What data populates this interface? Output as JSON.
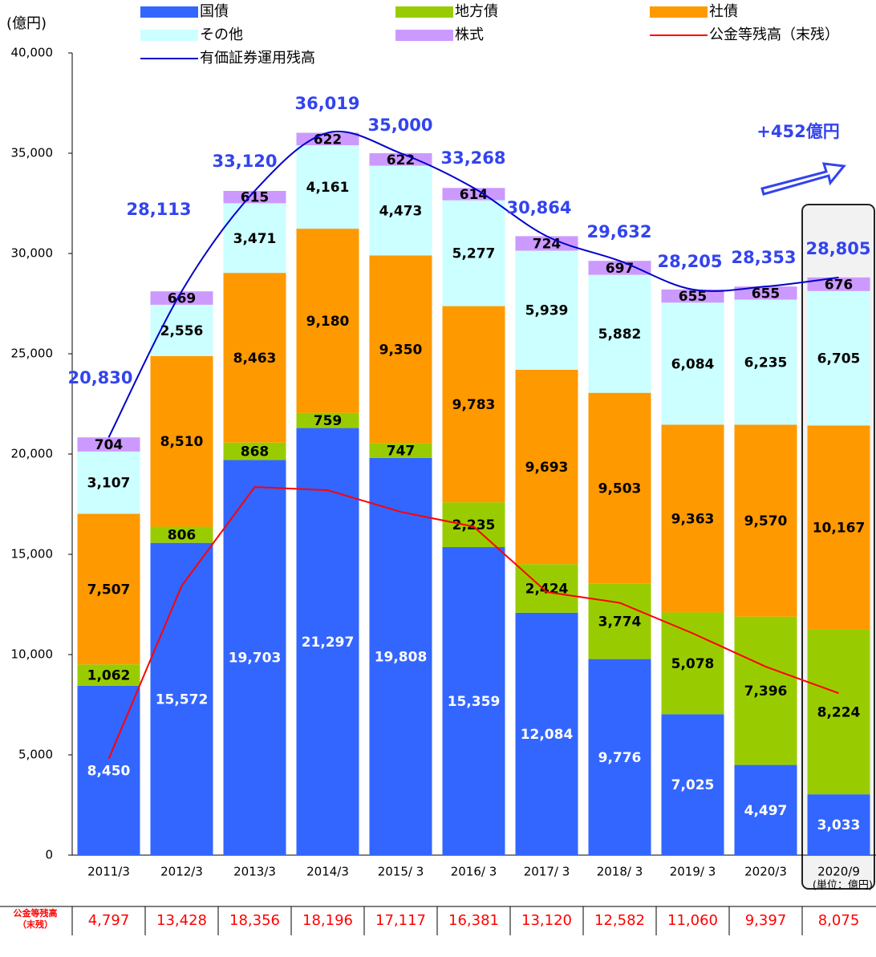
{
  "chart_data": {
    "type": "bar",
    "y_unit": "(億円)",
    "unit_note": "(単位：億円)",
    "annotation": "+452億円",
    "table_header": [
      "公金等残高",
      "（末残）"
    ],
    "categories": [
      "2011/3",
      "2012/3",
      "2013/3",
      "2014/3",
      "2015/ 3",
      "2016/ 3",
      "2017/ 3",
      "2018/ 3",
      "2019/ 3",
      "2020/3",
      "2020/9"
    ],
    "ylim": [
      0,
      40000
    ],
    "yticks": [
      0,
      {
        "value": 5000,
        "label": "5,000"
      },
      {
        "value": 10000,
        "label": "10,000"
      },
      {
        "value": 15000,
        "label": "15,000"
      },
      {
        "value": 20000,
        "label": "20,000"
      },
      {
        "value": 25000,
        "label": "25,000"
      },
      {
        "value": 30000,
        "label": "30,000"
      },
      {
        "value": 35000,
        "label": "35,000"
      },
      {
        "value": 40000,
        "label": "40,000"
      }
    ],
    "series": [
      {
        "name": "国債",
        "type": "bar",
        "color": "#3366ff",
        "label_color": "#ffffff",
        "values": [
          8450,
          15572,
          19703,
          21297,
          19808,
          15359,
          12084,
          9776,
          7025,
          4497,
          3033
        ],
        "value_labels": [
          "8,450",
          "15,572",
          "19,703",
          "21,297",
          "19,808",
          "15,359",
          "12,084",
          "9,776",
          "7,025",
          "4,497",
          "3,033"
        ]
      },
      {
        "name": "地方債",
        "type": "bar",
        "color": "#99cc00",
        "label_color": "#000000",
        "values": [
          1062,
          806,
          868,
          759,
          747,
          2235,
          2424,
          3774,
          5078,
          7396,
          8224
        ],
        "value_labels": [
          "1,062",
          "806",
          "868",
          "759",
          "747",
          "2,235",
          "2,424",
          "3,774",
          "5,078",
          "7,396",
          "8,224"
        ]
      },
      {
        "name": "社債",
        "type": "bar",
        "color": "#ff9900",
        "label_color": "#000000",
        "values": [
          7507,
          8510,
          8463,
          9180,
          9350,
          9783,
          9693,
          9503,
          9363,
          9570,
          10167
        ],
        "value_labels": [
          "7,507",
          "8,510",
          "8,463",
          "9,180",
          "9,350",
          "9,783",
          "9,693",
          "9,503",
          "9,363",
          "9,570",
          "10,167"
        ]
      },
      {
        "name": "その他",
        "type": "bar",
        "color": "#ccffff",
        "label_color": "#000000",
        "values": [
          3107,
          2556,
          3471,
          4161,
          4473,
          5277,
          5939,
          5882,
          6084,
          6235,
          6705
        ],
        "value_labels": [
          "3,107",
          "2,556",
          "3,471",
          "4,161",
          "4,473",
          "5,277",
          "5,939",
          "5,882",
          "6,084",
          "6,235",
          "6,705"
        ]
      },
      {
        "name": "株式",
        "type": "bar",
        "color": "#cc99ff",
        "label_color": "#000000",
        "values": [
          704,
          669,
          615,
          622,
          622,
          614,
          724,
          697,
          655,
          655,
          676
        ]
      },
      {
        "name": "公金等残高（末残）",
        "type": "line",
        "color": "#ff0000",
        "values": [
          4797,
          13428,
          18356,
          18196,
          17117,
          16381,
          13120,
          12582,
          11060,
          9397,
          8075
        ],
        "value_labels": [
          "4,797",
          "13,428",
          "18,356",
          "18,196",
          "17,117",
          "16,381",
          "13,120",
          "12,582",
          "11,060",
          "9,397",
          "8,075"
        ]
      },
      {
        "name": "有価証券運用残高",
        "type": "line",
        "smooth": true,
        "color": "#0000cc",
        "label_color": "#3344ee",
        "values": [
          20830,
          28113,
          33120,
          36019,
          35000,
          33268,
          30864,
          29632,
          28205,
          28353,
          28805
        ],
        "value_labels": [
          "20,830",
          "28,113",
          "33,120",
          "36,019",
          "35,000",
          "33,268",
          "30,864",
          "29,632",
          "28,205",
          "28,353",
          "28,805"
        ]
      }
    ]
  }
}
